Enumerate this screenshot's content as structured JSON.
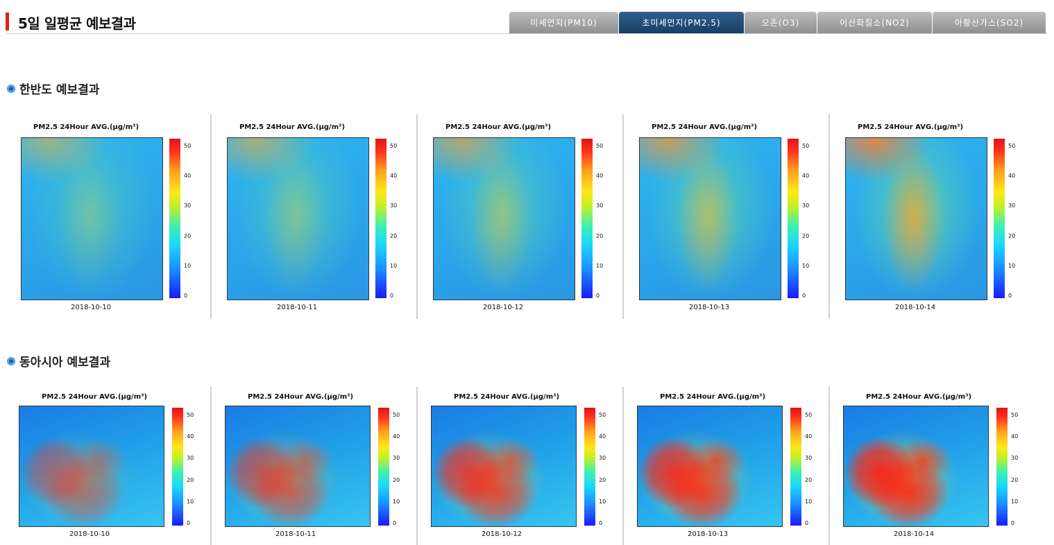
{
  "header": {
    "title": "5일 일평균 예보결과"
  },
  "tabs": [
    {
      "label": "미세먼지(PM10)",
      "active": false
    },
    {
      "label": "초미세먼지(PM2.5)",
      "active": true
    },
    {
      "label": "오존(O3)",
      "active": false
    },
    {
      "label": "이산화질소(NO2)",
      "active": false
    },
    {
      "label": "아황산가스(SO2)",
      "active": false
    }
  ],
  "sections": {
    "korea": {
      "title": "한반도 예보결과"
    },
    "east_asia": {
      "title": "동아시아 예보결과"
    }
  },
  "panel_title": "PM2.5 24Hour AVG.(μg/m³)",
  "dates": [
    "2018-10-10",
    "2018-10-11",
    "2018-10-12",
    "2018-10-13",
    "2018-10-14"
  ],
  "colorbar_ticks": [
    "50",
    "40",
    "30",
    "20",
    "10",
    "0"
  ],
  "korea_levels": [
    0.2,
    0.28,
    0.38,
    0.52,
    0.72
  ],
  "east_asia_levels": [
    0.45,
    0.58,
    0.75,
    0.85,
    0.92
  ],
  "colors": {
    "active_tab": "#1f4a75",
    "inactive_tab": "#9a9a9a",
    "accent_bar": "#e0201b",
    "bullet": "#1a5ea8"
  }
}
